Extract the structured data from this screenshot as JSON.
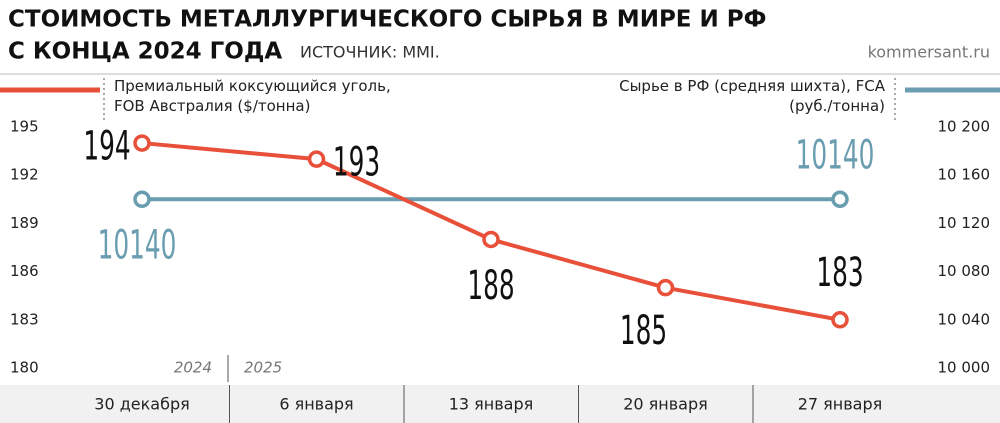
{
  "chart_data": {
    "type": "line",
    "title": [
      "СТОИМОСТЬ МЕТАЛЛУРГИЧЕСКОГО СЫРЬЯ В МИРЕ И РФ",
      "С КОНЦА 2024 ГОДА"
    ],
    "source": "ИСТОЧНИК: MMI.",
    "credit": "kommersant.ru",
    "categories": [
      "30 декабря",
      "6 января",
      "13 января",
      "20 января",
      "27 января"
    ],
    "year_labels": [
      "2024",
      "2025"
    ],
    "series": [
      {
        "name": "Премиальный коксующийся уголь, FOB Австралия ($/тонна)",
        "color": "#e8503a",
        "values": [
          194,
          193,
          188,
          185,
          183
        ]
      },
      {
        "name": "Сырье в РФ (средняя шихта), FCA (руб./тонна)",
        "color": "#6a9db0",
        "axis": "y2",
        "values": [
          10140,
          10140,
          10140,
          10140,
          10140
        ],
        "value_labels": [
          "10140",
          null,
          null,
          null,
          "10140"
        ]
      }
    ],
    "ylim": [
      180,
      195
    ],
    "yticks": [
      180,
      183,
      186,
      189,
      192,
      195
    ],
    "y2lim": [
      10000,
      10200
    ],
    "y2ticks": [
      {
        "value": 10000,
        "label": "10 000"
      },
      {
        "value": 10040,
        "label": "10 040"
      },
      {
        "value": 10080,
        "label": "10 080"
      },
      {
        "value": 10120,
        "label": "10 120"
      },
      {
        "value": 10160,
        "label": "10 160"
      },
      {
        "value": 10200,
        "label": "10 200"
      }
    ]
  }
}
